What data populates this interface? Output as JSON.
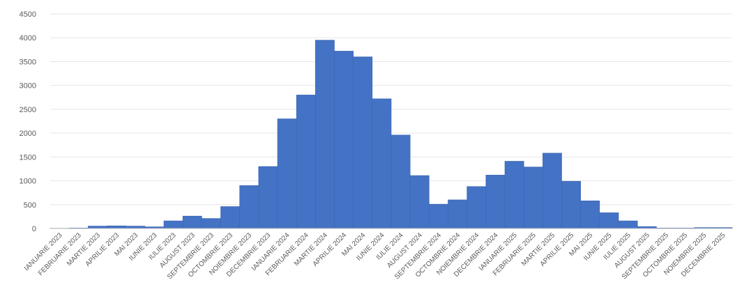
{
  "chart_data": {
    "type": "bar",
    "title": "",
    "xlabel": "",
    "ylabel": "",
    "ylim": [
      0,
      4500
    ],
    "yticks": [
      0,
      500,
      1000,
      1500,
      2000,
      2500,
      3000,
      3500,
      4000,
      4500
    ],
    "grid": true,
    "legend": "none",
    "bar_color": "#4472C4",
    "categories": [
      "IANUARIE 2023",
      "FEBRUARIE 2023",
      "MARTIE 2023",
      "APRILIE 2023",
      "MAI 2023",
      "IUNIE 2023",
      "IULIE 2023",
      "AUGUST 2023",
      "SEPTEMBRIE 2023",
      "OCTOMBRIE 2023",
      "NOIEMBRIE 2023",
      "DECEMBRIE 2023",
      "IANUARIE 2024",
      "FEBRUARIE 2024",
      "MARTIE 2024",
      "APRILIE 2024",
      "MAI 2024",
      "IUNIE 2024",
      "IULIE 2024",
      "AUGUST 2024",
      "SEPTEMBRIE 2024",
      "OCTOMBRIE 2024",
      "NOIEMBRIE 2024",
      "DECEMBRIE 2024",
      "IANUARIE 2025",
      "FEBRUARIE 2025",
      "MARTIE 2025",
      "APRILIE 2025",
      "MAI 2025",
      "IUNIE 2025",
      "IULIE 2025",
      "AUGUST 2025",
      "SEPTEMBRIE 2025",
      "OCTOMBRIE 2025",
      "NOIEMBRIE 2025",
      "DECEMBRIE 2025"
    ],
    "values": [
      5,
      10,
      50,
      55,
      50,
      35,
      160,
      260,
      210,
      460,
      900,
      1300,
      2300,
      2800,
      3950,
      3720,
      3600,
      2720,
      1960,
      1110,
      510,
      600,
      880,
      1120,
      1410,
      1290,
      1580,
      990,
      580,
      330,
      160,
      40,
      10,
      10,
      20,
      20
    ]
  }
}
